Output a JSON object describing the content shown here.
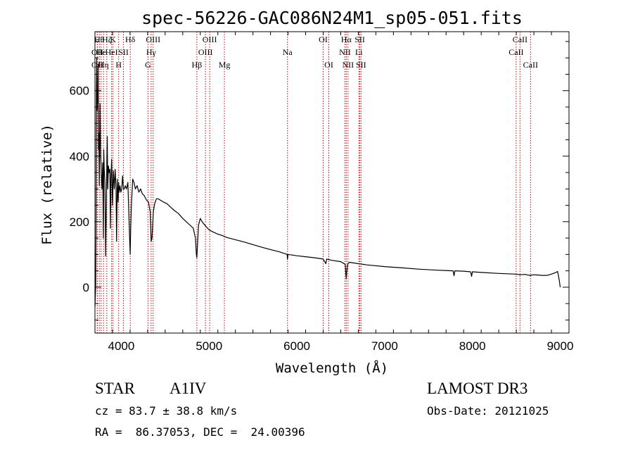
{
  "chart_data": {
    "type": "line",
    "title": "spec-56226-GAC086N24M1_sp05-051.fits",
    "xlabel": "Wavelength (Å)",
    "ylabel": "Flux (relative)",
    "xlim": [
      3700,
      9100
    ],
    "ylim": [
      -140,
      780
    ],
    "xticks": [
      4000,
      5000,
      6000,
      7000,
      8000,
      9000
    ],
    "xtick_labels": [
      "4000",
      "5000",
      "6000",
      "7000",
      "8000",
      "9000"
    ],
    "yticks": [
      0,
      200,
      400,
      600
    ],
    "ytick_labels": [
      "0",
      "200",
      "400",
      "600"
    ],
    "grid": false,
    "series": [
      {
        "name": "flux",
        "color": "#000000",
        "x": [
          3700,
          3708,
          3712,
          3716,
          3720,
          3724,
          3728,
          3732,
          3736,
          3740,
          3744,
          3750,
          3758,
          3766,
          3772,
          3780,
          3788,
          3796,
          3800,
          3806,
          3814,
          3822,
          3830,
          3836,
          3840,
          3846,
          3854,
          3862,
          3870,
          3876,
          3882,
          3890,
          3900,
          3910,
          3920,
          3930,
          3940,
          3946,
          3955,
          3964,
          3970,
          3976,
          3985,
          3995,
          4005,
          4015,
          4025,
          4035,
          4045,
          4060,
          4075,
          4085,
          4095,
          4101,
          4106,
          4115,
          4130,
          4145,
          4160,
          4180,
          4200,
          4220,
          4240,
          4260,
          4290,
          4310,
          4330,
          4340,
          4350,
          4365,
          4380,
          4400,
          4420,
          4450,
          4480,
          4520,
          4560,
          4600,
          4650,
          4700,
          4740,
          4780,
          4820,
          4845,
          4855,
          4861,
          4868,
          4880,
          4900,
          4920,
          4950,
          5000,
          5050,
          5100,
          5150,
          5200,
          5300,
          5400,
          5500,
          5600,
          5700,
          5800,
          5890,
          5893,
          5900,
          6000,
          6100,
          6200,
          6300,
          6330,
          6340,
          6400,
          6500,
          6550,
          6556,
          6563,
          6570,
          6580,
          6600,
          6700,
          6800,
          7000,
          7200,
          7400,
          7600,
          7780,
          7790,
          7800,
          7900,
          7980,
          7990,
          8000,
          8100,
          8300,
          8500,
          8540,
          8600,
          8650,
          8700,
          8800,
          8850,
          8900,
          8950,
          8970,
          8990,
          9000
        ],
        "y": [
          -60,
          0,
          150,
          600,
          700,
          540,
          600,
          560,
          680,
          420,
          470,
          310,
          560,
          400,
          350,
          300,
          380,
          150,
          420,
          360,
          320,
          95,
          250,
          400,
          460,
          300,
          370,
          350,
          360,
          180,
          330,
          390,
          250,
          355,
          300,
          360,
          300,
          140,
          330,
          260,
          320,
          290,
          310,
          290,
          300,
          340,
          300,
          300,
          310,
          300,
          320,
          230,
          150,
          100,
          170,
          250,
          330,
          320,
          300,
          310,
          290,
          300,
          285,
          280,
          265,
          260,
          230,
          140,
          150,
          230,
          255,
          270,
          270,
          265,
          260,
          255,
          245,
          235,
          225,
          210,
          200,
          190,
          180,
          150,
          100,
          90,
          130,
          190,
          210,
          200,
          190,
          175,
          168,
          162,
          158,
          152,
          145,
          138,
          130,
          122,
          115,
          108,
          100,
          85,
          100,
          96,
          93,
          90,
          86,
          72,
          86,
          82,
          78,
          70,
          50,
          25,
          50,
          72,
          76,
          72,
          68,
          63,
          59,
          55,
          52,
          50,
          35,
          50,
          49,
          47,
          33,
          47,
          45,
          42,
          40,
          38,
          39,
          36,
          38,
          36,
          36,
          40,
          45,
          48,
          20,
          0
        ]
      }
    ],
    "line_markers": [
      {
        "wavelength": 3727,
        "label": "OII",
        "row": 1
      },
      {
        "wavelength": 3727,
        "label": "OII",
        "row": 2
      },
      {
        "wavelength": 3750,
        "label": "Hθ",
        "row": 0
      },
      {
        "wavelength": 3770,
        "label": "He",
        "row": 1
      },
      {
        "wavelength": 3798,
        "label": "Hη",
        "row": 2
      },
      {
        "wavelength": 3835,
        "label": "Hζ",
        "row": 0
      },
      {
        "wavelength": 3889,
        "label": "HeI",
        "row": 1
      },
      {
        "wavelength": 3905,
        "label": "K",
        "row": 0
      },
      {
        "wavelength": 3970,
        "label": "H",
        "row": 2
      },
      {
        "wavelength": 4025,
        "label": "SII",
        "row": 1
      },
      {
        "wavelength": 4102,
        "label": "Hδ",
        "row": 0
      },
      {
        "wavelength": 4304,
        "label": "G",
        "row": 2
      },
      {
        "wavelength": 4340,
        "label": "Hγ",
        "row": 1
      },
      {
        "wavelength": 4363,
        "label": "OIII",
        "row": 0
      },
      {
        "wavelength": 4861,
        "label": "Hβ",
        "row": 2
      },
      {
        "wavelength": 4959,
        "label": "OIII",
        "row": 1
      },
      {
        "wavelength": 5007,
        "label": "OIII",
        "row": 0
      },
      {
        "wavelength": 5175,
        "label": "Mg",
        "row": 2
      },
      {
        "wavelength": 5893,
        "label": "Na",
        "row": 1
      },
      {
        "wavelength": 6300,
        "label": "OI",
        "row": 0
      },
      {
        "wavelength": 6364,
        "label": "OI",
        "row": 2
      },
      {
        "wavelength": 6548,
        "label": "NII",
        "row": 1
      },
      {
        "wavelength": 6563,
        "label": "Hα",
        "row": 0
      },
      {
        "wavelength": 6583,
        "label": "NII",
        "row": 2
      },
      {
        "wavelength": 6707,
        "label": "Li",
        "row": 1
      },
      {
        "wavelength": 6717,
        "label": "SII",
        "row": 0
      },
      {
        "wavelength": 6731,
        "label": "SII",
        "row": 2
      },
      {
        "wavelength": 8498,
        "label": "CaII",
        "row": 1
      },
      {
        "wavelength": 8542,
        "label": "CaII",
        "row": 0
      },
      {
        "wavelength": 8662,
        "label": "CaII",
        "row": 2
      }
    ],
    "marker_color": "#cc0000"
  },
  "info": {
    "class_label": "STAR",
    "subclass": "A1IV",
    "survey": "LAMOST DR3",
    "redshift_text": "cz = 83.7 ± 38.8 km/s",
    "obs_date_text": "Obs-Date: 20121025",
    "coords_text": "RA =  86.37053, DEC =  24.00396"
  }
}
